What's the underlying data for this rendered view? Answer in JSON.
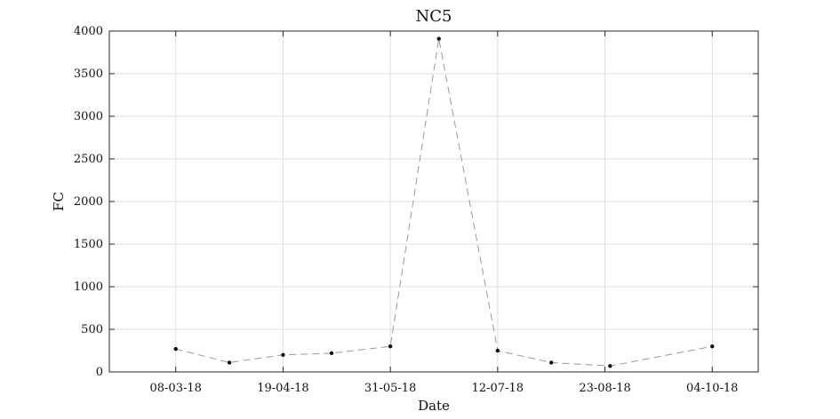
{
  "chart_data": {
    "type": "line",
    "title": "NC5",
    "xlabel": "Date",
    "ylabel": "FC",
    "x_ticks": [
      "08-03-18",
      "19-04-18",
      "31-05-18",
      "12-07-18",
      "23-08-18",
      "04-10-18"
    ],
    "y_ticks": [
      0,
      500,
      1000,
      1500,
      2000,
      2500,
      3000,
      3500,
      4000
    ],
    "xlim": [
      "2018-02-10",
      "2018-10-22"
    ],
    "ylim": [
      0,
      4000
    ],
    "grid": true,
    "series": [
      {
        "x": [
          "2018-03-08",
          "2018-03-29",
          "2018-04-19",
          "2018-05-08",
          "2018-05-31",
          "2018-06-19",
          "2018-07-12",
          "2018-08-02",
          "2018-08-25",
          "2018-10-04"
        ],
        "y": [
          270,
          110,
          200,
          220,
          300,
          3910,
          250,
          110,
          70,
          300
        ],
        "line_color": "#999999",
        "line_style": "dashed",
        "marker_color": "#111111"
      }
    ]
  }
}
